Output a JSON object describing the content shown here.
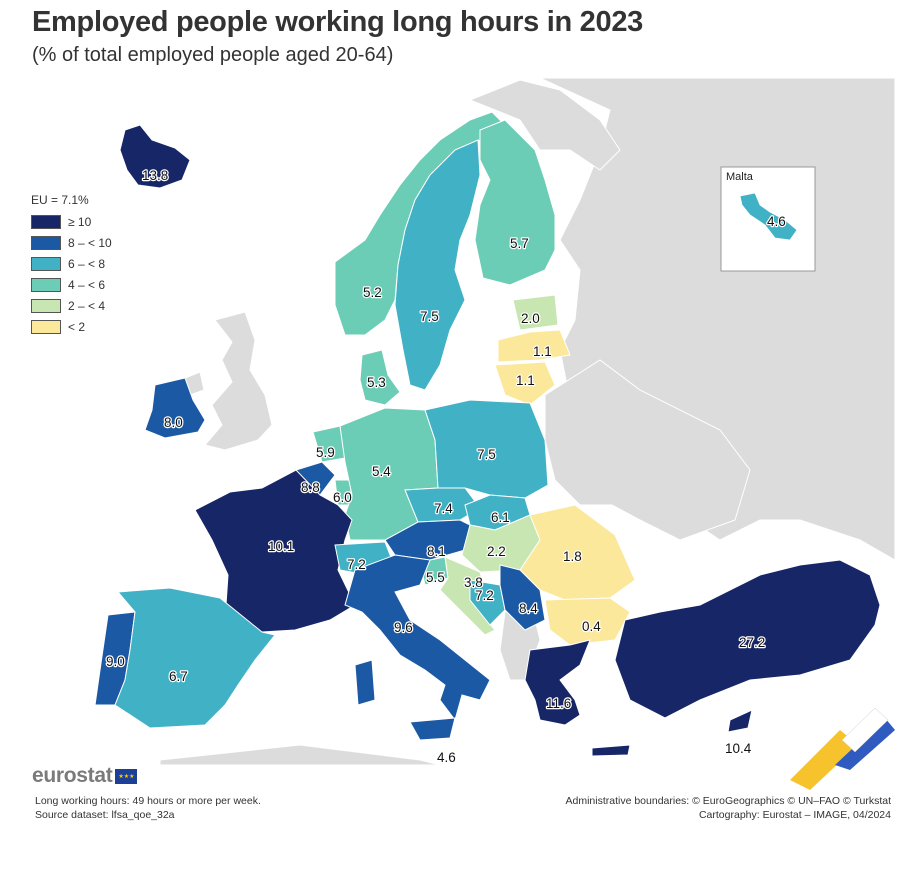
{
  "header": {
    "title": "Employed people working long hours in 2023",
    "subtitle": "(% of total employed people aged 20-64)"
  },
  "legend": {
    "title": "EU = 7.1%",
    "classes": [
      {
        "label": "≥ 10",
        "color": "#162667"
      },
      {
        "label": "8 – < 10",
        "color": "#1b59a4"
      },
      {
        "label": "6 – < 8",
        "color": "#41b1c6"
      },
      {
        "label": "4 – < 6",
        "color": "#6ccdb6"
      },
      {
        "label": "2 – < 4",
        "color": "#c8e6b2"
      },
      {
        "label": "< 2",
        "color": "#fbe89b"
      }
    ]
  },
  "colors": {
    "sea": "#ffffff",
    "land_no_data": "#dcdcdc",
    "border": "#ffffff"
  },
  "inset": {
    "label": "Malta"
  },
  "regions": {
    "iceland": {
      "label": "13.8"
    },
    "norway": {
      "label": "5.2"
    },
    "sweden": {
      "label": "7.5"
    },
    "finland": {
      "label": "5.7"
    },
    "estonia": {
      "label": "2.0"
    },
    "latvia": {
      "label": "1.1"
    },
    "lithuania": {
      "label": "1.1"
    },
    "denmark": {
      "label": "5.3"
    },
    "ireland": {
      "label": "8.0"
    },
    "netherlands": {
      "label": "5.9"
    },
    "belgium": {
      "label": "8.8"
    },
    "luxembourg": {
      "label": "6.0"
    },
    "germany": {
      "label": "5.4"
    },
    "poland": {
      "label": "7.5"
    },
    "czechia": {
      "label": "7.4"
    },
    "slovakia": {
      "label": "6.1"
    },
    "austria": {
      "label": "8.1"
    },
    "hungary": {
      "label": "2.2"
    },
    "romania": {
      "label": "1.8"
    },
    "bulgaria": {
      "label": "0.4"
    },
    "france": {
      "label": "10.1"
    },
    "switzerland": {
      "label": "7.2"
    },
    "slovenia": {
      "label": "5.5"
    },
    "croatia": {
      "label": "3.8"
    },
    "bosnia": {
      "label": "7.2"
    },
    "serbia": {
      "label": "8.4"
    },
    "italy": {
      "label": "9.6"
    },
    "portugal": {
      "label": "9.0"
    },
    "spain": {
      "label": "6.7"
    },
    "greece": {
      "label": "11.6"
    },
    "turkiye": {
      "label": "27.2"
    },
    "cyprus": {
      "label": "10.4"
    },
    "malta": {
      "label": "4.6"
    },
    "sicily": {
      "label": "4.6"
    }
  },
  "footer": {
    "logo_text": "eurostat",
    "note": "Long working hours: 49 hours or more per week.",
    "source": "Source dataset: lfsa_qoe_32a",
    "boundaries": "Administrative boundaries: © EuroGeographics © UN–FAO © Turkstat",
    "cartography": "Cartography: Eurostat – IMAGE, 04/2024"
  }
}
